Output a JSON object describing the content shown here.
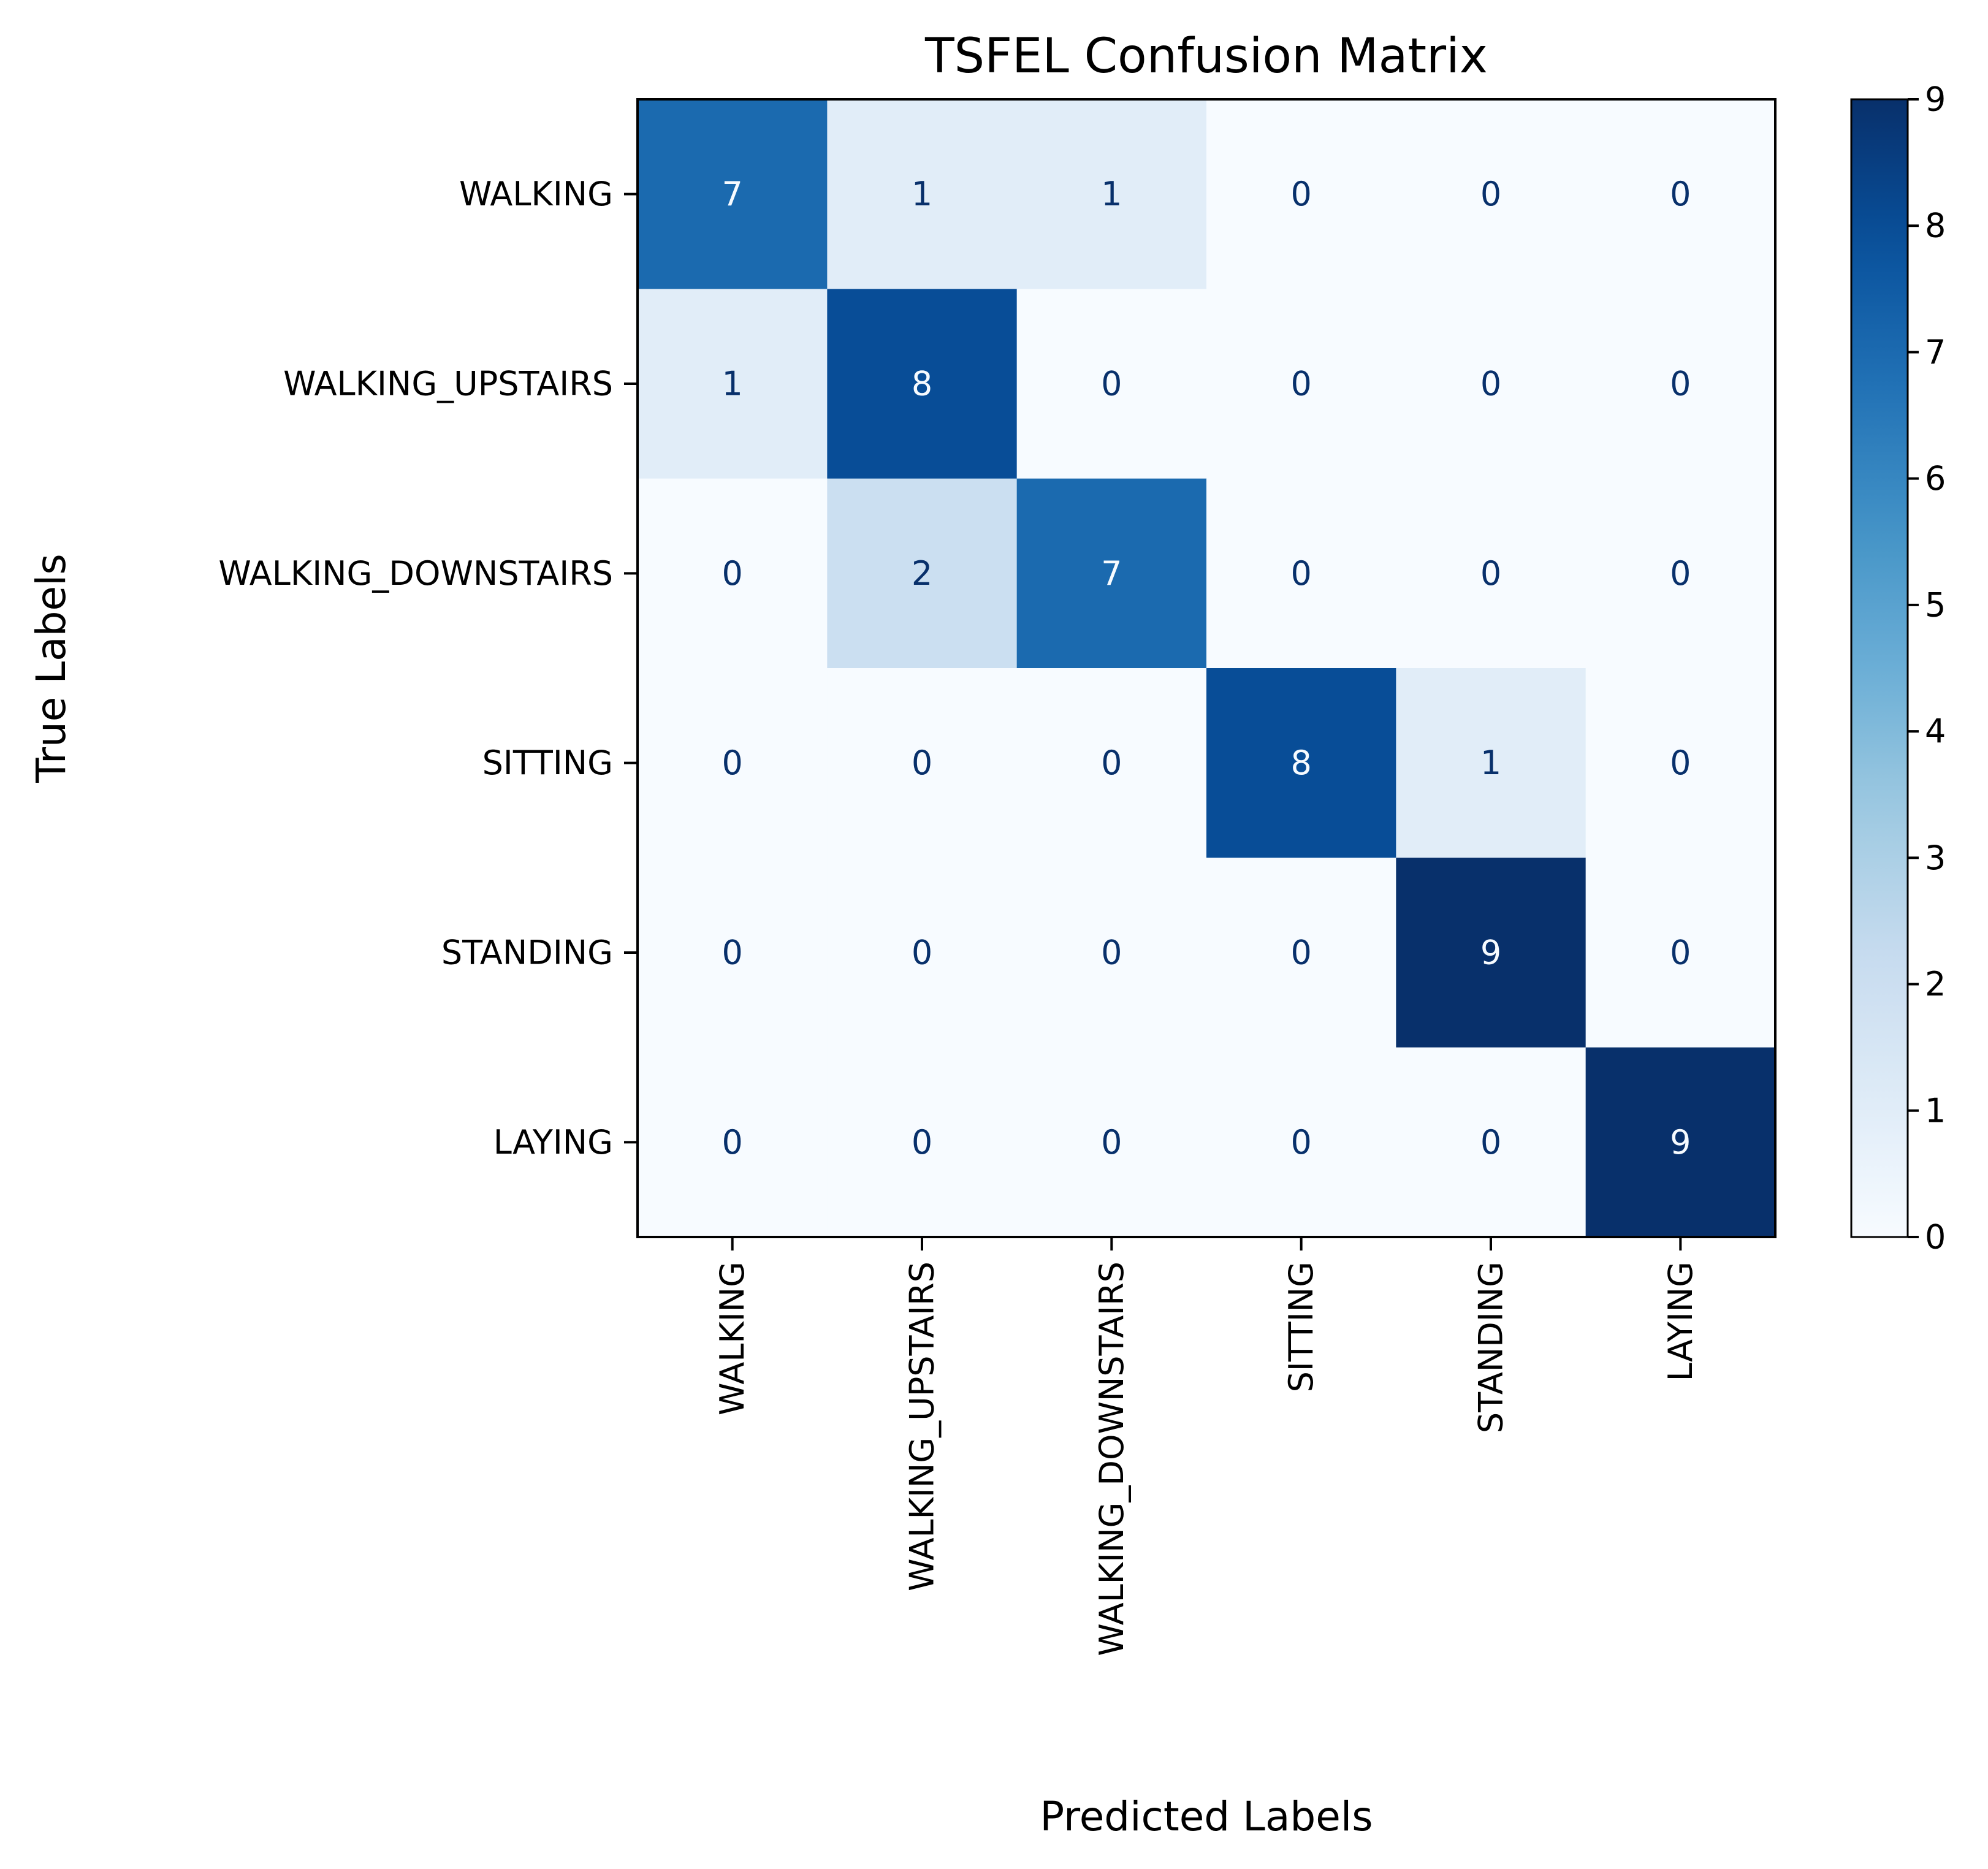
{
  "chart_data": {
    "type": "heatmap",
    "title": "TSFEL Confusion Matrix",
    "xlabel": "Predicted Labels",
    "ylabel": "True Labels",
    "x_categories": [
      "WALKING",
      "WALKING_UPSTAIRS",
      "WALKING_DOWNSTAIRS",
      "SITTING",
      "STANDING",
      "LAYING"
    ],
    "y_categories": [
      "WALKING",
      "WALKING_UPSTAIRS",
      "WALKING_DOWNSTAIRS",
      "SITTING",
      "STANDING",
      "LAYING"
    ],
    "values": [
      [
        7,
        1,
        1,
        0,
        0,
        0
      ],
      [
        1,
        8,
        0,
        0,
        0,
        0
      ],
      [
        0,
        2,
        7,
        0,
        0,
        0
      ],
      [
        0,
        0,
        0,
        8,
        1,
        0
      ],
      [
        0,
        0,
        0,
        0,
        9,
        0
      ],
      [
        0,
        0,
        0,
        0,
        0,
        9
      ]
    ],
    "colormap": "Blues",
    "color_range": [
      0,
      9
    ],
    "colorbar_ticks": [
      0,
      1,
      2,
      3,
      4,
      5,
      6,
      7,
      8,
      9
    ],
    "grid": false
  }
}
